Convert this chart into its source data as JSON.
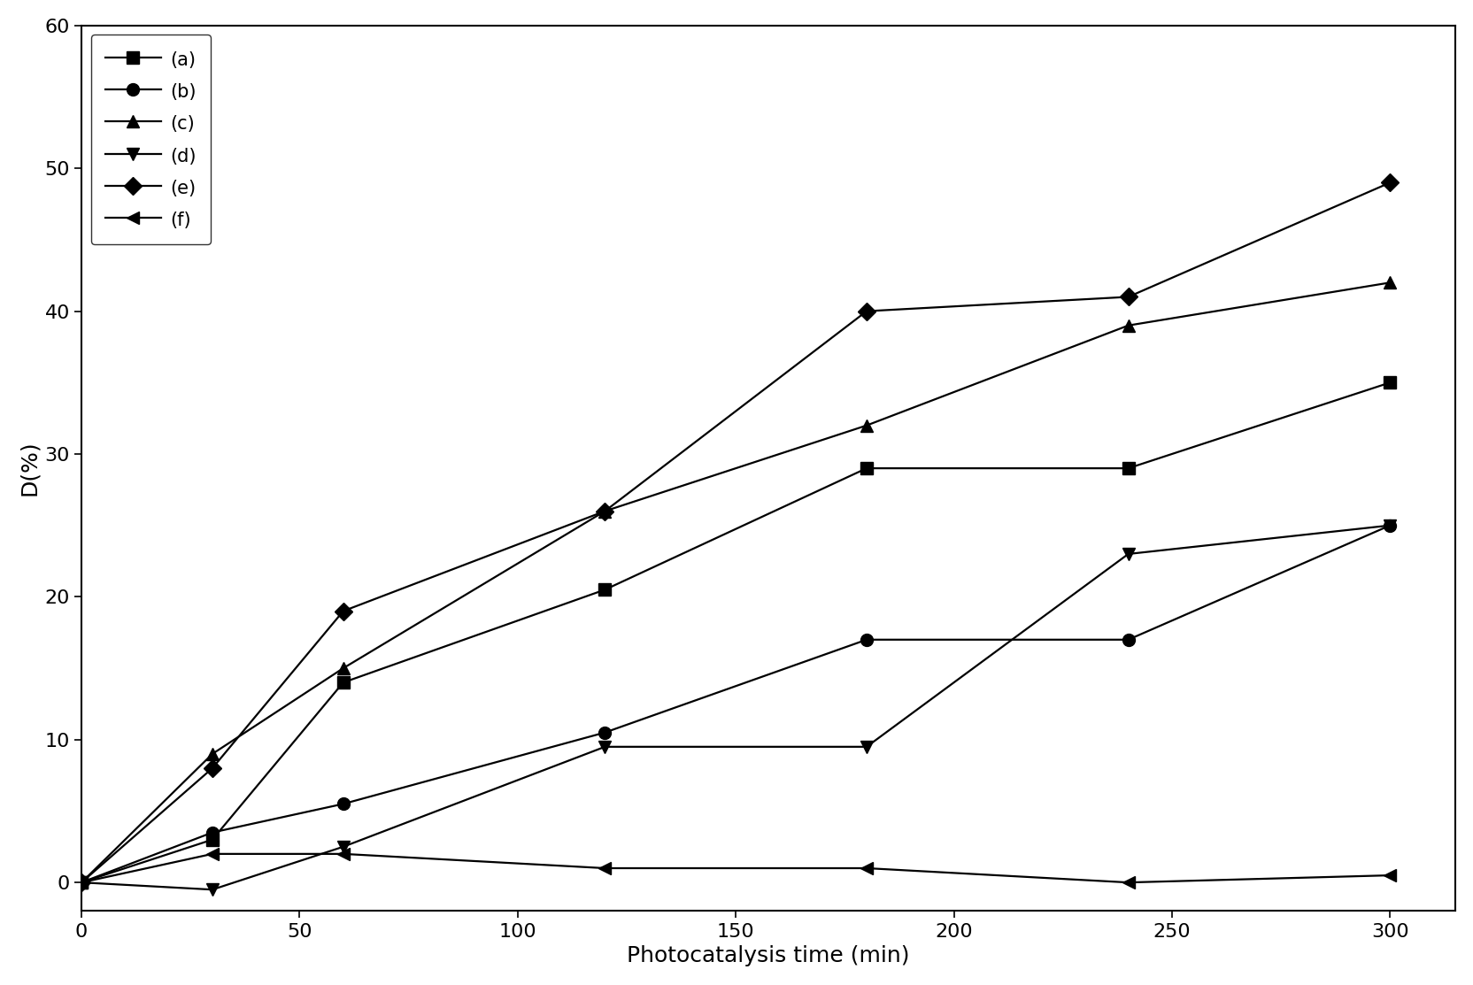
{
  "series": [
    {
      "label": "(a)",
      "marker": "s",
      "x": [
        0,
        30,
        60,
        120,
        180,
        240,
        300
      ],
      "y": [
        0,
        3,
        14,
        20.5,
        29,
        29,
        35
      ]
    },
    {
      "label": "(b)",
      "marker": "o",
      "x": [
        0,
        30,
        60,
        120,
        180,
        240,
        300
      ],
      "y": [
        0,
        3.5,
        5.5,
        10.5,
        17,
        17,
        25
      ]
    },
    {
      "label": "(c)",
      "marker": "^",
      "x": [
        0,
        30,
        60,
        120,
        180,
        240,
        300
      ],
      "y": [
        0,
        9,
        15,
        26,
        32,
        39,
        42
      ]
    },
    {
      "label": "(d)",
      "marker": "v",
      "x": [
        0,
        30,
        60,
        120,
        180,
        240,
        300
      ],
      "y": [
        0,
        -0.5,
        2.5,
        9.5,
        9.5,
        23,
        25
      ]
    },
    {
      "label": "(e)",
      "marker": "D",
      "x": [
        0,
        30,
        60,
        120,
        180,
        240,
        300
      ],
      "y": [
        0,
        8,
        19,
        26,
        40,
        41,
        49
      ]
    },
    {
      "label": "(f)",
      "marker": "<",
      "x": [
        0,
        30,
        60,
        120,
        180,
        240,
        300
      ],
      "y": [
        0,
        2,
        2,
        1,
        1,
        0,
        0.5
      ]
    }
  ],
  "xlabel": "Photocatalysis time (min)",
  "ylabel": "D(%)",
  "xlim": [
    0,
    315
  ],
  "ylim": [
    -2,
    60
  ],
  "xticks": [
    0,
    50,
    100,
    150,
    200,
    250,
    300
  ],
  "yticks": [
    0,
    10,
    20,
    30,
    40,
    50,
    60
  ],
  "color": "#000000",
  "markersize": 10,
  "linewidth": 1.6,
  "legend_fontsize": 15,
  "axis_label_fontsize": 18,
  "tick_fontsize": 16,
  "figwidth": 16.65,
  "figheight": 11.13,
  "dpi": 100
}
